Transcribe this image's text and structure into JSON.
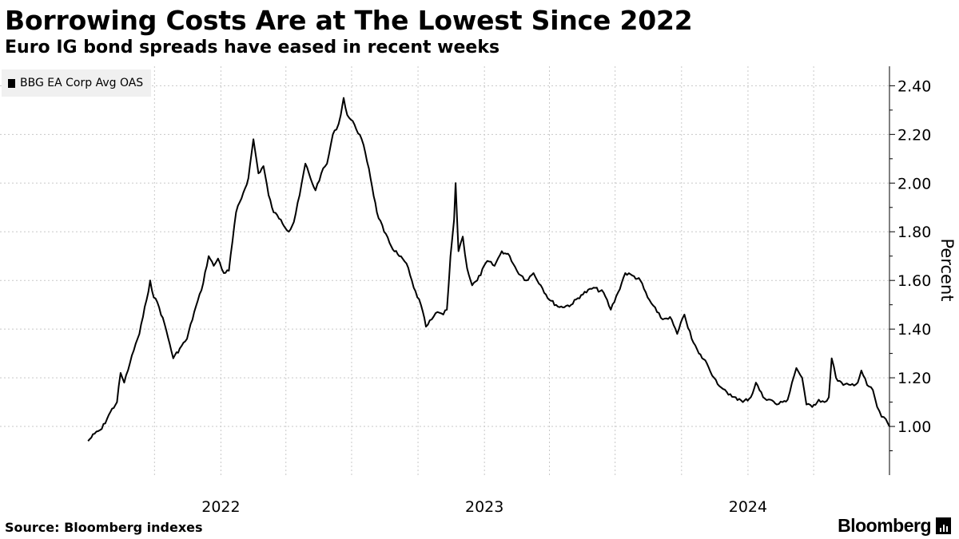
{
  "title": "Borrowing Costs Are at The Lowest Since 2022",
  "subtitle": "Euro IG bond spreads have eased in recent weeks",
  "source": "Source: Bloomberg indexes",
  "brand": "Bloomberg",
  "brand_icon": "bloomberg-chart-icon",
  "colors": {
    "line": "#000000",
    "grid": "#c8c8c8",
    "legend_bg": "#f0f0f0"
  },
  "chart_data": {
    "type": "line",
    "title": "Borrowing Costs Are at The Lowest Since 2022",
    "subtitle": "Euro IG bond spreads have eased in recent weeks",
    "ylabel": "Percent",
    "y_axis_side": "right",
    "ylim": [
      0.8,
      2.48
    ],
    "yticks": [
      1.0,
      1.2,
      1.4,
      1.6,
      1.8,
      2.0,
      2.2,
      2.4
    ],
    "ytick_labels": [
      "1.00",
      "1.20",
      "1.40",
      "1.60",
      "1.80",
      "2.00",
      "2.20",
      "2.40"
    ],
    "x_range": [
      "2021-03-01",
      "2024-07-15"
    ],
    "xtick_labels": [
      "2022",
      "2023",
      "2024"
    ],
    "xtick_dates": [
      "2022-01-01",
      "2023-01-01",
      "2024-01-01"
    ],
    "quarter_grid_dates": [
      "2021-10-01",
      "2022-01-01",
      "2022-04-01",
      "2022-07-01",
      "2022-10-01",
      "2023-01-01",
      "2023-04-01",
      "2023-07-01",
      "2023-10-01",
      "2024-01-01",
      "2024-04-01"
    ],
    "grid": true,
    "legend_position": "top-left",
    "series": [
      {
        "name": "BBG EA Corp Avg OAS",
        "color": "#000000",
        "points": [
          [
            "2021-07-01",
            0.94
          ],
          [
            "2021-07-10",
            0.97
          ],
          [
            "2021-07-20",
            0.99
          ],
          [
            "2021-08-01",
            1.06
          ],
          [
            "2021-08-10",
            1.1
          ],
          [
            "2021-08-15",
            1.22
          ],
          [
            "2021-08-20",
            1.18
          ],
          [
            "2021-08-28",
            1.26
          ],
          [
            "2021-09-05",
            1.34
          ],
          [
            "2021-09-10",
            1.38
          ],
          [
            "2021-09-15",
            1.45
          ],
          [
            "2021-09-20",
            1.52
          ],
          [
            "2021-09-25",
            1.6
          ],
          [
            "2021-09-30",
            1.53
          ],
          [
            "2021-10-05",
            1.51
          ],
          [
            "2021-10-15",
            1.42
          ],
          [
            "2021-10-22",
            1.34
          ],
          [
            "2021-10-27",
            1.28
          ],
          [
            "2021-11-05",
            1.32
          ],
          [
            "2021-11-15",
            1.36
          ],
          [
            "2021-11-25",
            1.47
          ],
          [
            "2021-12-05",
            1.56
          ],
          [
            "2021-12-15",
            1.7
          ],
          [
            "2021-12-22",
            1.66
          ],
          [
            "2021-12-28",
            1.69
          ],
          [
            "2022-01-05",
            1.63
          ],
          [
            "2022-01-12",
            1.64
          ],
          [
            "2022-01-22",
            1.88
          ],
          [
            "2022-02-01",
            1.96
          ],
          [
            "2022-02-08",
            2.02
          ],
          [
            "2022-02-15",
            2.18
          ],
          [
            "2022-02-22",
            2.04
          ],
          [
            "2022-03-01",
            2.07
          ],
          [
            "2022-03-08",
            1.95
          ],
          [
            "2022-03-15",
            1.88
          ],
          [
            "2022-03-25",
            1.85
          ],
          [
            "2022-04-05",
            1.8
          ],
          [
            "2022-04-12",
            1.84
          ],
          [
            "2022-04-20",
            1.95
          ],
          [
            "2022-04-28",
            2.08
          ],
          [
            "2022-05-05",
            2.02
          ],
          [
            "2022-05-12",
            1.97
          ],
          [
            "2022-05-20",
            2.04
          ],
          [
            "2022-05-28",
            2.08
          ],
          [
            "2022-06-05",
            2.2
          ],
          [
            "2022-06-10",
            2.22
          ],
          [
            "2022-06-16",
            2.28
          ],
          [
            "2022-06-20",
            2.35
          ],
          [
            "2022-06-25",
            2.28
          ],
          [
            "2022-07-05",
            2.24
          ],
          [
            "2022-07-15",
            2.18
          ],
          [
            "2022-07-25",
            2.06
          ],
          [
            "2022-08-05",
            1.88
          ],
          [
            "2022-08-15",
            1.8
          ],
          [
            "2022-08-25",
            1.74
          ],
          [
            "2022-09-05",
            1.7
          ],
          [
            "2022-09-15",
            1.67
          ],
          [
            "2022-09-25",
            1.57
          ],
          [
            "2022-10-05",
            1.5
          ],
          [
            "2022-10-12",
            1.41
          ],
          [
            "2022-10-20",
            1.44
          ],
          [
            "2022-10-28",
            1.47
          ],
          [
            "2022-11-05",
            1.46
          ],
          [
            "2022-11-10",
            1.48
          ],
          [
            "2022-11-15",
            1.7
          ],
          [
            "2022-11-20",
            1.85
          ],
          [
            "2022-11-22",
            2.0
          ],
          [
            "2022-11-26",
            1.72
          ],
          [
            "2022-12-02",
            1.78
          ],
          [
            "2022-12-08",
            1.65
          ],
          [
            "2022-12-15",
            1.58
          ],
          [
            "2022-12-22",
            1.6
          ],
          [
            "2023-01-05",
            1.68
          ],
          [
            "2023-01-15",
            1.66
          ],
          [
            "2023-01-25",
            1.72
          ],
          [
            "2023-02-05",
            1.7
          ],
          [
            "2023-02-15",
            1.64
          ],
          [
            "2023-02-28",
            1.6
          ],
          [
            "2023-03-10",
            1.63
          ],
          [
            "2023-03-20",
            1.58
          ],
          [
            "2023-04-01",
            1.52
          ],
          [
            "2023-04-15",
            1.49
          ],
          [
            "2023-05-01",
            1.5
          ],
          [
            "2023-05-15",
            1.54
          ],
          [
            "2023-06-01",
            1.57
          ],
          [
            "2023-06-15",
            1.55
          ],
          [
            "2023-06-25",
            1.48
          ],
          [
            "2023-07-05",
            1.55
          ],
          [
            "2023-07-15",
            1.63
          ],
          [
            "2023-07-25",
            1.62
          ],
          [
            "2023-08-05",
            1.6
          ],
          [
            "2023-08-15",
            1.53
          ],
          [
            "2023-08-28",
            1.47
          ],
          [
            "2023-09-05",
            1.44
          ],
          [
            "2023-09-15",
            1.45
          ],
          [
            "2023-09-25",
            1.38
          ],
          [
            "2023-10-05",
            1.46
          ],
          [
            "2023-10-15",
            1.36
          ],
          [
            "2023-10-25",
            1.3
          ],
          [
            "2023-11-05",
            1.26
          ],
          [
            "2023-11-15",
            1.2
          ],
          [
            "2023-11-25",
            1.16
          ],
          [
            "2023-12-05",
            1.13
          ],
          [
            "2023-12-15",
            1.12
          ],
          [
            "2023-12-25",
            1.1
          ],
          [
            "2024-01-05",
            1.12
          ],
          [
            "2024-01-12",
            1.18
          ],
          [
            "2024-01-22",
            1.12
          ],
          [
            "2024-02-01",
            1.11
          ],
          [
            "2024-02-10",
            1.09
          ],
          [
            "2024-02-18",
            1.1
          ],
          [
            "2024-02-25",
            1.11
          ],
          [
            "2024-03-02",
            1.18
          ],
          [
            "2024-03-08",
            1.24
          ],
          [
            "2024-03-16",
            1.2
          ],
          [
            "2024-03-22",
            1.09
          ],
          [
            "2024-03-30",
            1.08
          ],
          [
            "2024-04-08",
            1.11
          ],
          [
            "2024-04-16",
            1.1
          ],
          [
            "2024-04-22",
            1.12
          ],
          [
            "2024-04-26",
            1.28
          ],
          [
            "2024-05-02",
            1.2
          ],
          [
            "2024-05-12",
            1.17
          ],
          [
            "2024-05-22",
            1.17
          ],
          [
            "2024-06-01",
            1.18
          ],
          [
            "2024-06-06",
            1.23
          ],
          [
            "2024-06-14",
            1.17
          ],
          [
            "2024-06-22",
            1.15
          ],
          [
            "2024-06-28",
            1.08
          ],
          [
            "2024-07-04",
            1.04
          ],
          [
            "2024-07-10",
            1.03
          ],
          [
            "2024-07-15",
            1.0
          ]
        ]
      }
    ]
  }
}
